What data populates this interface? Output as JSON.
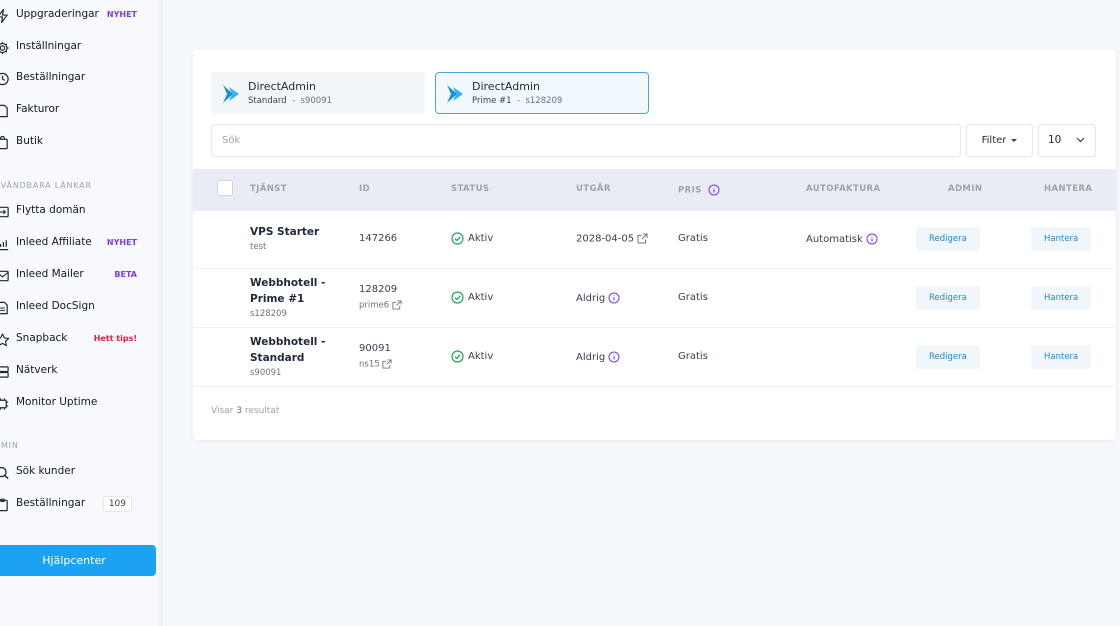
{
  "colors": {
    "accent": "#1da1f2",
    "tag_purple": "#7c3aed",
    "tag_pink": "#e11d48",
    "status_green": "#22a55b",
    "info_purple": "#7c3aed"
  },
  "sidebar": {
    "items_top": [
      {
        "label": "Uppgraderingar",
        "icon": "bolt-icon",
        "tag": "NYHET"
      },
      {
        "label": "Inställningar",
        "icon": "gear-icon"
      },
      {
        "label": "Beställningar",
        "icon": "clock-icon"
      },
      {
        "label": "Fakturor",
        "icon": "file-icon"
      },
      {
        "label": "Butik",
        "icon": "bag-icon"
      }
    ],
    "section_links": "NVÄNDBARA LÄNKAR",
    "items_links": [
      {
        "label": "Flytta domän",
        "icon": "transfer-icon"
      },
      {
        "label": "Inleed Affiliate",
        "icon": "chart-icon",
        "tag": "NYHET"
      },
      {
        "label": "Inleed Mailer",
        "icon": "mail-icon",
        "tag": "BETA"
      },
      {
        "label": "Inleed DocSign",
        "icon": "document-icon"
      },
      {
        "label": "Snapback",
        "icon": "star-icon",
        "tag": "Hett tips!"
      },
      {
        "label": "Nätverk",
        "icon": "server-icon"
      },
      {
        "label": "Monitor Uptime",
        "icon": "chip-icon"
      }
    ],
    "section_admin": "DMIN",
    "items_admin": [
      {
        "label": "Sök kunder",
        "icon": "search-icon"
      },
      {
        "label": "Beställningar",
        "icon": "clipboard-icon",
        "count": "109"
      }
    ],
    "help_button": "Hjälpcenter"
  },
  "service_tabs": [
    {
      "name": "DirectAdmin",
      "plan": "Standard",
      "sep": "-",
      "id": "s90091"
    },
    {
      "name": "DirectAdmin",
      "plan": "Prime #1",
      "sep": "-",
      "id": "s128209"
    }
  ],
  "search": {
    "placeholder": "Sök"
  },
  "filter": {
    "label": "Filter"
  },
  "per_page": {
    "value": "10"
  },
  "table": {
    "headers": {
      "service": "TJÄNST",
      "id": "ID",
      "status": "STATUS",
      "expires": "UTGÅR",
      "price": "PRIS",
      "autoinvoice": "AUTOFAKTURA",
      "admin": "ADMIN",
      "manage": "HANTERA"
    },
    "rows": [
      {
        "name_line1": "VPS Starter",
        "name_line2": "",
        "sub": "test",
        "id": "147266",
        "id_sub": "",
        "status": "Aktiv",
        "expires": "2028-04-05",
        "price": "Gratis",
        "autoinvoice": "Automatisk",
        "edit": "Redigera",
        "manage": "Hantera"
      },
      {
        "name_line1": "Webbhotell -",
        "name_line2": "Prime #1",
        "sub": "s128209",
        "id": "128209",
        "id_sub": "prime6",
        "status": "Aktiv",
        "expires": "Aldrig",
        "price": "Gratis",
        "autoinvoice": "",
        "edit": "Redigera",
        "manage": "Hantera"
      },
      {
        "name_line1": "Webbhotell -",
        "name_line2": "Standard",
        "sub": "s90091",
        "id": "90091",
        "id_sub": "ns15",
        "status": "Aktiv",
        "expires": "Aldrig",
        "price": "Gratis",
        "autoinvoice": "",
        "edit": "Redigera",
        "manage": "Hantera"
      }
    ]
  },
  "footer": {
    "prefix": "Visar",
    "count": "3",
    "suffix": "resultat"
  }
}
